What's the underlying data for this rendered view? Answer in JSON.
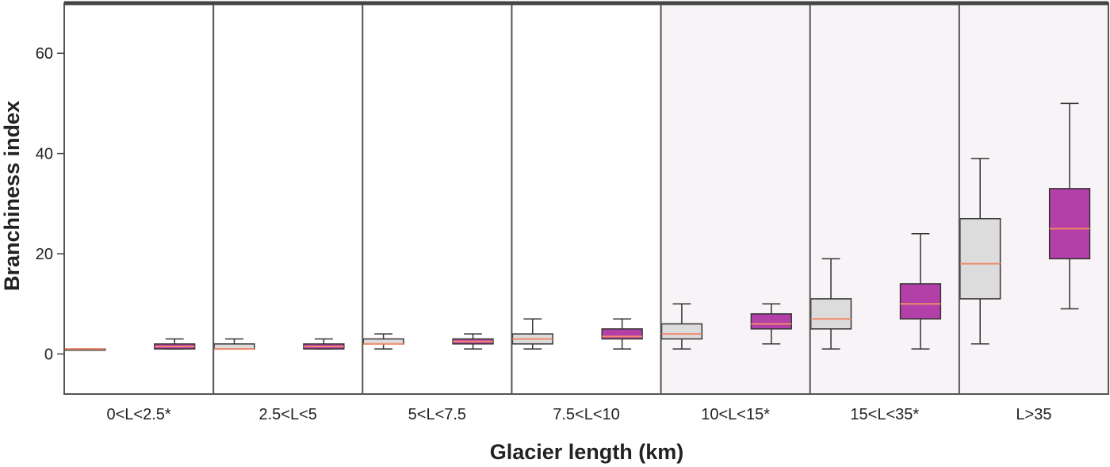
{
  "chart_data": {
    "type": "box",
    "xlabel": "Glacier length (km)",
    "ylabel": "Branchiness index",
    "ylim": [
      -8,
      70
    ],
    "yticks": [
      0,
      20,
      40,
      60
    ],
    "grid": false,
    "categories": [
      "0<L<2.5*",
      "2.5<L<5",
      "5<L<7.5",
      "7.5<L<10",
      "10<L<15*",
      "15<L<35*",
      "L>35"
    ],
    "shaded_categories": [
      "10<L<15*",
      "15<L<35*",
      "L>35"
    ],
    "series": [
      {
        "color": "#dcdcdc",
        "boxes": [
          {
            "min": 1,
            "q1": 1,
            "median": 1,
            "q3": 1,
            "max": 1
          },
          {
            "min": 1,
            "q1": 1,
            "median": 1,
            "q3": 2,
            "max": 3
          },
          {
            "min": 1,
            "q1": 2,
            "median": 2,
            "q3": 3,
            "max": 4
          },
          {
            "min": 1,
            "q1": 2,
            "median": 3,
            "q3": 4,
            "max": 7
          },
          {
            "min": 1,
            "q1": 3,
            "median": 4,
            "q3": 6,
            "max": 10
          },
          {
            "min": 1,
            "q1": 5,
            "median": 7,
            "q3": 11,
            "max": 19
          },
          {
            "min": 2,
            "q1": 11,
            "median": 18,
            "q3": 27,
            "max": 39
          }
        ]
      },
      {
        "color": "#b33fa8",
        "boxes": [
          {
            "min": 1,
            "q1": 1,
            "median": 1.5,
            "q3": 2,
            "max": 3
          },
          {
            "min": 1,
            "q1": 1,
            "median": 1.5,
            "q3": 2,
            "max": 3
          },
          {
            "min": 1,
            "q1": 2,
            "median": 2.5,
            "q3": 3,
            "max": 4
          },
          {
            "min": 1,
            "q1": 3,
            "median": 3.5,
            "q3": 5,
            "max": 7
          },
          {
            "min": 2,
            "q1": 5,
            "median": 6,
            "q3": 8,
            "max": 10
          },
          {
            "min": 1,
            "q1": 7,
            "median": 10,
            "q3": 14,
            "max": 24
          },
          {
            "min": 9,
            "q1": 19,
            "median": 25,
            "q3": 33,
            "max": 50
          }
        ]
      }
    ],
    "median_color": "#f08a6a"
  }
}
